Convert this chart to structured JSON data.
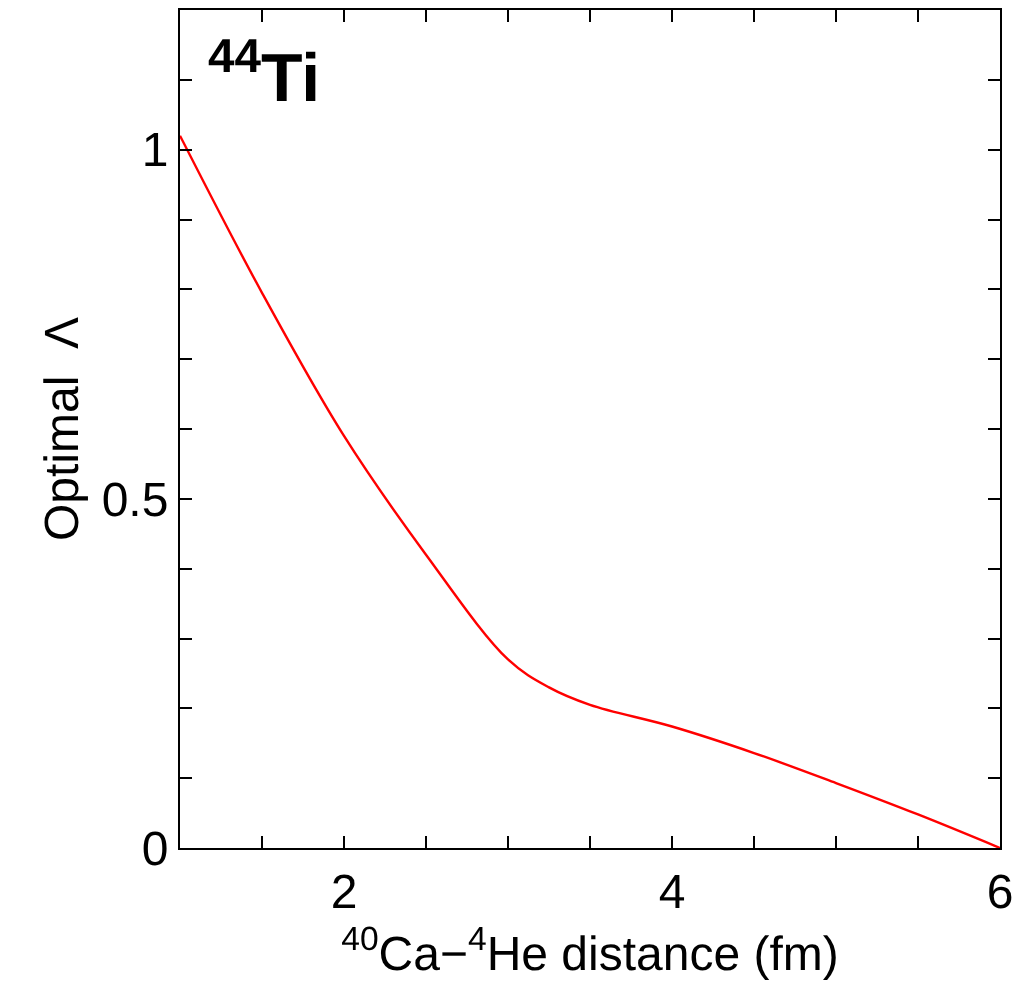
{
  "chart_data": {
    "type": "line",
    "xlabel": "$^{40}$Ca−$^{4}$He distance (fm)",
    "ylabel": "Optimal  Λ",
    "annotations": [
      "$^{44}$Ti"
    ],
    "x": [
      1.0,
      1.5,
      2.0,
      2.5,
      3.0,
      3.25,
      3.5,
      4.0,
      4.5,
      5.0,
      5.5,
      6.0
    ],
    "series": [
      {
        "color": "#ff0000",
        "values": [
          1.02,
          0.795,
          0.59,
          0.42,
          0.27,
          0.23,
          0.205,
          0.174,
          0.136,
          0.093,
          0.048,
          0.0
        ]
      }
    ],
    "xlim": [
      1,
      6
    ],
    "ylim": [
      0,
      1.2
    ],
    "xticks": [
      {
        "value": 1.5,
        "label": null
      },
      2,
      {
        "value": 2.5,
        "label": null
      },
      {
        "value": 3,
        "label": null
      },
      {
        "value": 3.5,
        "label": null
      },
      4,
      {
        "value": 4.5,
        "label": null
      },
      {
        "value": 5,
        "label": null
      },
      {
        "value": 5.5,
        "label": null
      },
      6
    ],
    "yticks": [
      0,
      {
        "value": 0.1,
        "label": null
      },
      {
        "value": 0.2,
        "label": null
      },
      {
        "value": 0.3,
        "label": null
      },
      {
        "value": 0.4,
        "label": null
      },
      0.5,
      {
        "value": 0.6,
        "label": null
      },
      {
        "value": 0.7,
        "label": null
      },
      {
        "value": 0.8,
        "label": null
      },
      {
        "value": 0.9,
        "label": null
      },
      1,
      {
        "value": 1.1,
        "label": null
      }
    ],
    "line_style": "solid",
    "marker": "none"
  }
}
